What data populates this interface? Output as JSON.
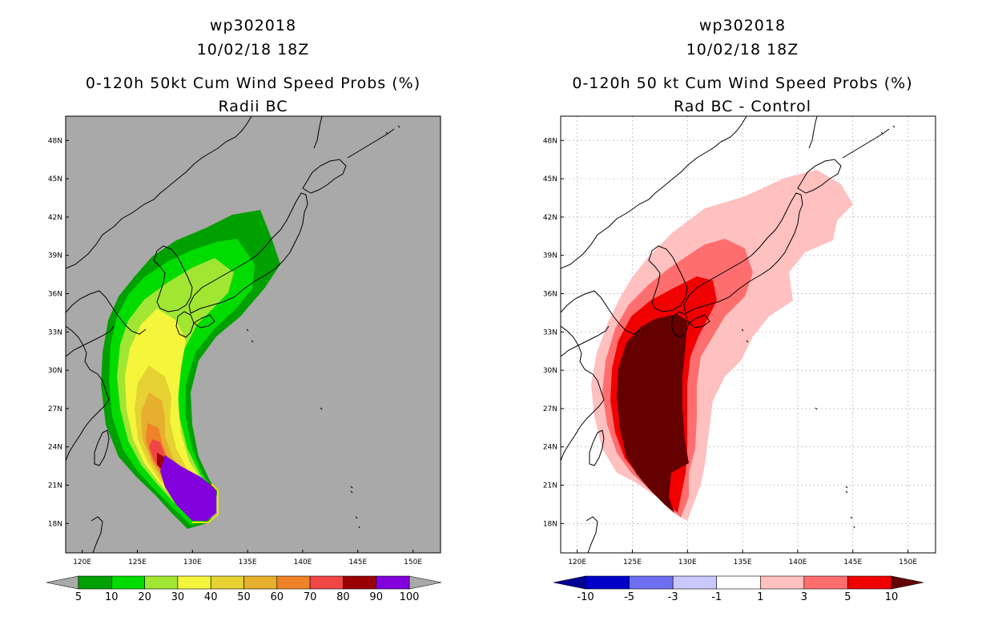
{
  "panels": [
    {
      "id": "left",
      "title_lines": [
        "wp302018",
        "10/02/18 18Z",
        "0-120h 50kt Cum Wind Speed Probs (%)",
        "Radii BC"
      ],
      "background": "#a9a9a9",
      "colorbar": {
        "colors": [
          "#00a000",
          "#00dc00",
          "#a0e632",
          "#f5f53c",
          "#e6d232",
          "#e6af2d",
          "#f08228",
          "#f04646",
          "#9b0000",
          "#8200dc"
        ],
        "labels": [
          "5",
          "10",
          "20",
          "30",
          "40",
          "50",
          "60",
          "70",
          "80",
          "90",
          "100"
        ],
        "end_color": "#a9a9a9"
      }
    },
    {
      "id": "right",
      "title_lines": [
        "wp302018",
        "10/02/18 18Z",
        "0-120h 50 kt Cum Wind Speed Probs (%)",
        "Rad BC - Control"
      ],
      "background": "#ffffff",
      "colorbar": {
        "colors": [
          "#0000c8",
          "#6e6ef0",
          "#c8c8ff",
          "#ffffff",
          "#ffc0c0",
          "#ff6e6e",
          "#f00000"
        ],
        "labels": [
          "-10",
          "-5",
          "-3",
          "-1",
          "1",
          "3",
          "5",
          "10"
        ],
        "end_low": "#000096",
        "end_high": "#640000"
      }
    }
  ],
  "chart_data": [
    {
      "type": "heatmap",
      "title": "0-120h 50kt Cum Wind Speed Probs (%)",
      "subtitle": "Radii BC",
      "storm": "wp302018",
      "valid": "10/02/18 18Z",
      "units": "%",
      "x_ticks": [
        "120E",
        "125E",
        "130E",
        "135E",
        "140E",
        "145E",
        "150E"
      ],
      "y_ticks": [
        "18N",
        "21N",
        "24N",
        "27N",
        "30N",
        "33N",
        "36N",
        "39N",
        "42N",
        "45N",
        "48N"
      ],
      "xlim": [
        118.5,
        152.5
      ],
      "ylim": [
        15.7,
        49.9
      ],
      "levels": [
        5,
        10,
        20,
        30,
        40,
        50,
        60,
        70,
        80,
        90,
        100
      ],
      "grid": false
    },
    {
      "type": "heatmap",
      "title": "0-120h 50 kt Cum Wind Speed Probs (%)",
      "subtitle": "Rad BC - Control",
      "storm": "wp302018",
      "valid": "10/02/18 18Z",
      "units": "%",
      "x_ticks": [
        "120E",
        "125E",
        "130E",
        "135E",
        "140E",
        "145E",
        "150E"
      ],
      "y_ticks": [
        "18N",
        "21N",
        "24N",
        "27N",
        "30N",
        "33N",
        "36N",
        "39N",
        "42N",
        "45N",
        "48N"
      ],
      "xlim": [
        118.5,
        152.5
      ],
      "ylim": [
        15.7,
        49.9
      ],
      "levels": [
        -10,
        -5,
        -3,
        -1,
        1,
        3,
        5,
        10
      ],
      "grid": true
    }
  ]
}
